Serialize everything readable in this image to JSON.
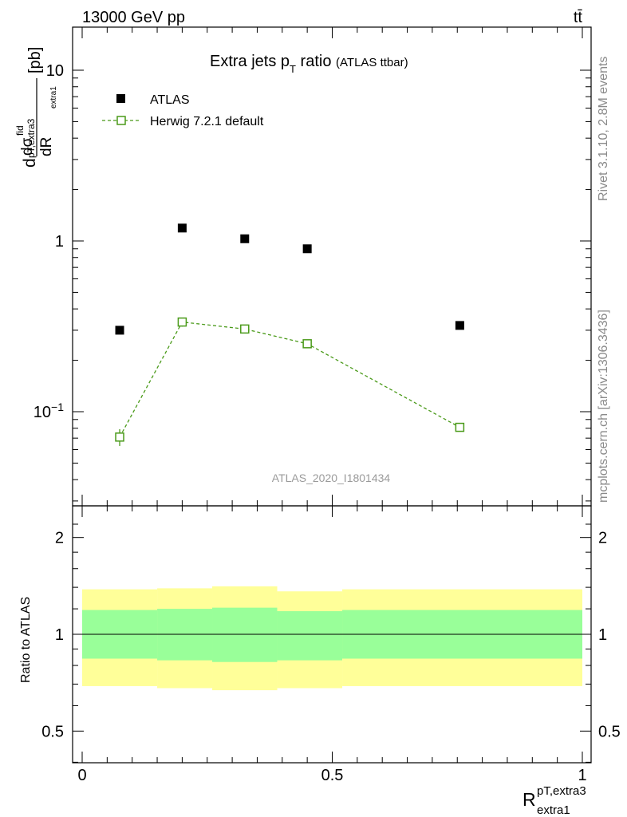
{
  "header": {
    "energy_label": "13000 GeV pp",
    "process_label": "tt̄"
  },
  "side_labels": {
    "rivet": "Rivet 3.1.10,  2.8M events",
    "mcplots": "mcplots.cern.ch [arXiv:1306.3436]"
  },
  "colors": {
    "data": "#000000",
    "mc": "#4a9a19",
    "band_inner": "#99ff99",
    "band_outer": "#ffff99",
    "side_text": "#8a8a8a"
  },
  "chart_data": [
    {
      "type": "scatter",
      "title": "Extra jets p_T ratio",
      "title_suffix": "(ATLAS ttbar)",
      "analysis_label": "ATLAS_2020_I1801434",
      "ylabel": "dσ^fid / dR^pT,extra3_extra1 [pb]",
      "xlabel": "R^pT,extra3_extra1",
      "yscale": "log",
      "xlim": [
        0,
        1
      ],
      "ylim": [
        0.03,
        18
      ],
      "x_ticks": [
        "0",
        "0.5",
        "1"
      ],
      "y_ticks": [
        "10^-1",
        "1",
        "10"
      ],
      "legend_position": "top-left",
      "series": [
        {
          "name": "ATLAS",
          "marker": "filled-square",
          "x": [
            0.075,
            0.2,
            0.325,
            0.45,
            0.755
          ],
          "y": [
            0.3,
            1.19,
            1.03,
            0.9,
            0.32
          ]
        },
        {
          "name": "Herwig 7.2.1 default",
          "marker": "open-square-dashed-line",
          "x": [
            0.075,
            0.2,
            0.325,
            0.45,
            0.755
          ],
          "y": [
            0.071,
            0.335,
            0.305,
            0.25,
            0.081
          ],
          "yerr": [
            0.008,
            0.02,
            0.015,
            0.013,
            0.004
          ]
        }
      ]
    },
    {
      "type": "area",
      "ylabel": "Ratio to ATLAS",
      "xlabel": "R^pT,extra3_extra1",
      "yscale": "log",
      "xlim": [
        0,
        1
      ],
      "ylim": [
        0.4,
        2.4
      ],
      "x_ticks": [
        "0",
        "0.5",
        "1"
      ],
      "y_ticks": [
        "0.5",
        "1",
        "2"
      ],
      "reference_line": 1,
      "bin_edges": [
        0,
        0.15,
        0.26,
        0.39,
        0.52,
        1.0
      ],
      "inner_band": {
        "low": [
          0.84,
          0.83,
          0.82,
          0.83,
          0.84
        ],
        "high": [
          1.19,
          1.2,
          1.21,
          1.18,
          1.19
        ]
      },
      "outer_band": {
        "low": [
          0.69,
          0.68,
          0.67,
          0.68,
          0.69
        ],
        "high": [
          1.38,
          1.39,
          1.41,
          1.36,
          1.38
        ]
      }
    }
  ]
}
